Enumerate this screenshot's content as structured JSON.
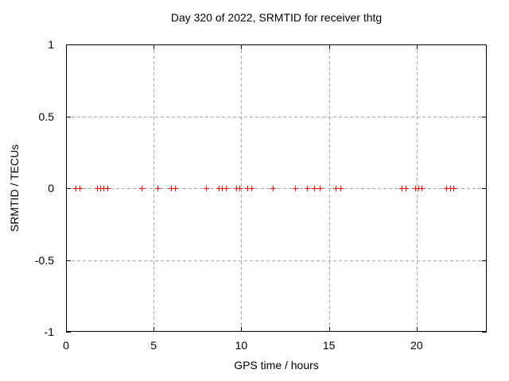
{
  "colors": {
    "marker": "#ff0000",
    "grid": "#a8a8a8",
    "axis": "#000000",
    "background": "#ffffff"
  },
  "chart_data": {
    "type": "scatter",
    "title": "Day 320 of 2022, SRMTID for receiver thtg",
    "xlabel": "GPS time / hours",
    "ylabel": "SRMTID / TECUs",
    "xlim": [
      0,
      24
    ],
    "ylim": [
      -1,
      1
    ],
    "xticks": [
      0,
      5,
      10,
      15,
      20
    ],
    "yticks": [
      -1,
      -0.5,
      0,
      0.5,
      1
    ],
    "grid": true,
    "legend": "none",
    "marker": "plus",
    "series": [
      {
        "name": "SRMTID",
        "x": [
          0.55,
          0.75,
          1.75,
          1.95,
          2.15,
          2.35,
          4.3,
          5.2,
          6.0,
          6.2,
          8.0,
          8.7,
          8.9,
          9.1,
          9.7,
          9.9,
          10.35,
          10.55,
          11.8,
          13.05,
          13.75,
          14.15,
          14.45,
          15.4,
          15.65,
          19.15,
          19.35,
          19.9,
          20.1,
          20.3,
          21.7,
          21.9,
          22.1
        ],
        "y": [
          0,
          0,
          0,
          0,
          0,
          0,
          0,
          0,
          0,
          0,
          0,
          0,
          0,
          0,
          0,
          0,
          0,
          0,
          0,
          0,
          0,
          0,
          0,
          0,
          0,
          0,
          0,
          0,
          0,
          0,
          0,
          0,
          0
        ]
      }
    ]
  }
}
